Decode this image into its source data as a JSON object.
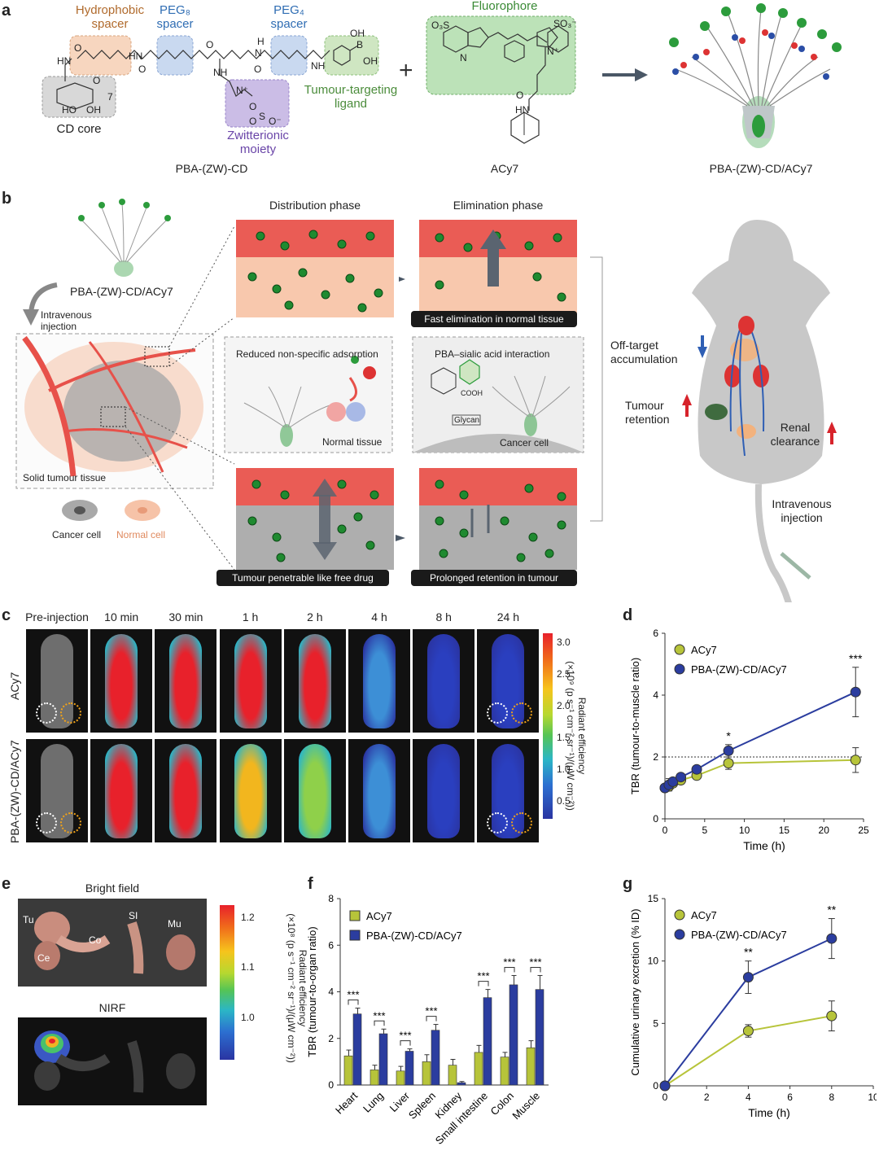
{
  "panel_letters": {
    "a": "a",
    "b": "b",
    "c": "c",
    "d": "d",
    "e": "e",
    "f": "f",
    "g": "g"
  },
  "panel_a": {
    "hydrophobic_spacer": "Hydrophobic\nspacer",
    "peg8_spacer": "PEG₈\nspacer",
    "peg4_spacer": "PEG₄\nspacer",
    "fluorophore": "Fluorophore",
    "tumour_targeting_ligand": "Tumour-targeting\nligand",
    "cd_core": "CD core",
    "zwitterionic_moiety": "Zwitterionic\nmoiety",
    "compound1": "PBA-(ZW)-CD",
    "compound2": "ACy7",
    "compound3": "PBA-(ZW)-CD/ACy7",
    "plus": "+",
    "chem_labels": [
      "HN",
      "O",
      "HN",
      "O",
      "NH",
      "O",
      "N",
      "O",
      "H",
      "NH",
      "B",
      "OH",
      "OH",
      "N⁺",
      "S",
      "O",
      "O",
      "O⁻",
      "OH",
      "HO",
      "O",
      "7",
      "O₃S",
      "SO₃⁻",
      "N",
      "N⁺",
      "O",
      "HN"
    ],
    "colors": {
      "hydrophobic": "#f7d6bf",
      "peg": "#c9d9f0",
      "zw": "#cbbde6",
      "ligand": "#cfe6c2",
      "fluor": "#9fd59a",
      "core": "#d8d8d8",
      "arrow": "#4a5766"
    }
  },
  "panel_b": {
    "probe_label": "PBA-(ZW)-CD/ACy7",
    "injection": "Intravenous\ninjection",
    "solid_tumour": "Solid tumour tissue",
    "cancer_cell": "Cancer cell",
    "normal_cell": "Normal cell",
    "distribution_phase": "Distribution phase",
    "elimination_phase": "Elimination phase",
    "fast_elimination": "Fast elimination in normal tissue",
    "reduced_adsorption": "Reduced non-specific adsorption",
    "normal_tissue": "Normal tissue",
    "pba_sialic": "PBA–sialic acid interaction",
    "cooh": "COOH",
    "glycan": "Glycan",
    "cancer_cell_box": "Cancer cell",
    "tumour_penetrable": "Tumour penetrable like free drug",
    "prolonged_retention": "Prolonged retention in tumour",
    "off_target": "Off-target\naccumulation",
    "tumour_retention": "Tumour\nretention",
    "renal_clearance": "Renal\nclearance",
    "iv_injection": "Intravenous\ninjection",
    "colors": {
      "normal": "#f6c3a8",
      "cancer": "#a9a9a9",
      "vessel": "#e7514a",
      "dye": "#2c9c3c",
      "up": "#d7232b",
      "down": "#2f5fb4"
    }
  },
  "panel_c": {
    "timepoints": [
      "Pre-injection",
      "10 min",
      "30 min",
      "1 h",
      "2 h",
      "4 h",
      "8 h",
      "24 h"
    ],
    "rows": [
      "ACy7",
      "PBA-(ZW)-CD/ACy7"
    ],
    "colorbar_ticks": [
      "3.0",
      "2.5",
      "2.0",
      "1.5",
      "1.0",
      "0.5"
    ],
    "colorbar_label": "Radiant efficiency\n(×10⁹ (p s⁻¹ cm⁻² sr⁻¹)/(μW cm⁻²))",
    "row_signal": [
      [
        0.0,
        1.0,
        1.0,
        1.0,
        0.95,
        0.45,
        0.2,
        0.15
      ],
      [
        0.0,
        1.0,
        1.0,
        0.85,
        0.65,
        0.4,
        0.2,
        0.15
      ]
    ]
  },
  "panel_e": {
    "bright_field": "Bright field",
    "nirf": "NIRF",
    "organ_labels": [
      "Tu",
      "Ce",
      "Co",
      "SI",
      "Mu"
    ],
    "colorbar_ticks": [
      "1.2",
      "1.1",
      "1.0"
    ],
    "colorbar_label": "Radiant efficiency\n(×10⁸ (p s⁻¹ cm⁻² sr⁻¹)/(μW cm⁻²))"
  },
  "chart_data": [
    {
      "id": "d",
      "type": "line",
      "xlabel": "Time (h)",
      "ylabel": "TBR (tumour-to-muscle ratio)",
      "xlim": [
        0,
        25
      ],
      "ylim": [
        0,
        6
      ],
      "xticks": [
        0,
        5,
        10,
        15,
        20,
        25
      ],
      "yticks": [
        0,
        2,
        4,
        6
      ],
      "reference_line": 2,
      "legend_position": "top-left",
      "x": [
        0,
        0.5,
        1,
        2,
        4,
        8,
        24
      ],
      "series": [
        {
          "name": "ACy7",
          "color": "#b7c43a",
          "values": [
            1.0,
            1.05,
            1.15,
            1.25,
            1.4,
            1.8,
            1.9
          ],
          "err": [
            0.05,
            0.1,
            0.1,
            0.1,
            0.1,
            0.2,
            0.4
          ]
        },
        {
          "name": "PBA-(ZW)-CD/ACy7",
          "color": "#2b3d9f",
          "values": [
            1.0,
            1.1,
            1.2,
            1.35,
            1.6,
            2.2,
            4.1
          ],
          "err": [
            0.05,
            0.2,
            0.1,
            0.1,
            0.1,
            0.2,
            0.8
          ]
        }
      ],
      "annotations": [
        {
          "x": 8,
          "text": "*"
        },
        {
          "x": 24,
          "text": "***"
        }
      ]
    },
    {
      "id": "f",
      "type": "bar",
      "xlabel": "",
      "ylabel": "TBR (tumour-to-organ ratio)",
      "ylim": [
        0,
        8
      ],
      "yticks": [
        0,
        2,
        4,
        6,
        8
      ],
      "legend_position": "top-left",
      "categories": [
        "Heart",
        "Lung",
        "Liver",
        "Spleen",
        "Kidney",
        "Small intestine",
        "Colon",
        "Muscle"
      ],
      "series": [
        {
          "name": "ACy7",
          "color": "#b7c43a",
          "values": [
            1.25,
            0.65,
            0.6,
            1.0,
            0.85,
            1.4,
            1.2,
            1.6
          ],
          "err": [
            0.25,
            0.2,
            0.2,
            0.3,
            0.25,
            0.3,
            0.2,
            0.3
          ]
        },
        {
          "name": "PBA-(ZW)-CD/ACy7",
          "color": "#2b3d9f",
          "values": [
            3.05,
            2.2,
            1.45,
            2.35,
            0.1,
            3.75,
            4.3,
            4.1
          ],
          "err": [
            0.25,
            0.2,
            0.1,
            0.25,
            0.05,
            0.35,
            0.4,
            0.6
          ]
        }
      ],
      "significance": [
        "***",
        "***",
        "***",
        "***",
        "",
        "***",
        "***",
        "***"
      ]
    },
    {
      "id": "g",
      "type": "line",
      "xlabel": "Time (h)",
      "ylabel": "Cumulative urinary excretion (% ID)",
      "xlim": [
        0,
        10
      ],
      "ylim": [
        0,
        15
      ],
      "xticks": [
        0,
        2,
        4,
        6,
        8,
        10
      ],
      "yticks": [
        0,
        5,
        10,
        15
      ],
      "legend_position": "top-left",
      "x": [
        0,
        4,
        8
      ],
      "series": [
        {
          "name": "ACy7",
          "color": "#b7c43a",
          "values": [
            0,
            4.4,
            5.6
          ],
          "err": [
            0,
            0.5,
            1.2
          ]
        },
        {
          "name": "PBA-(ZW)-CD/ACy7",
          "color": "#2b3d9f",
          "values": [
            0,
            8.7,
            11.8
          ],
          "err": [
            0,
            1.3,
            1.6
          ]
        }
      ],
      "annotations": [
        {
          "x": 4,
          "text": "**"
        },
        {
          "x": 8,
          "text": "**"
        }
      ]
    }
  ]
}
